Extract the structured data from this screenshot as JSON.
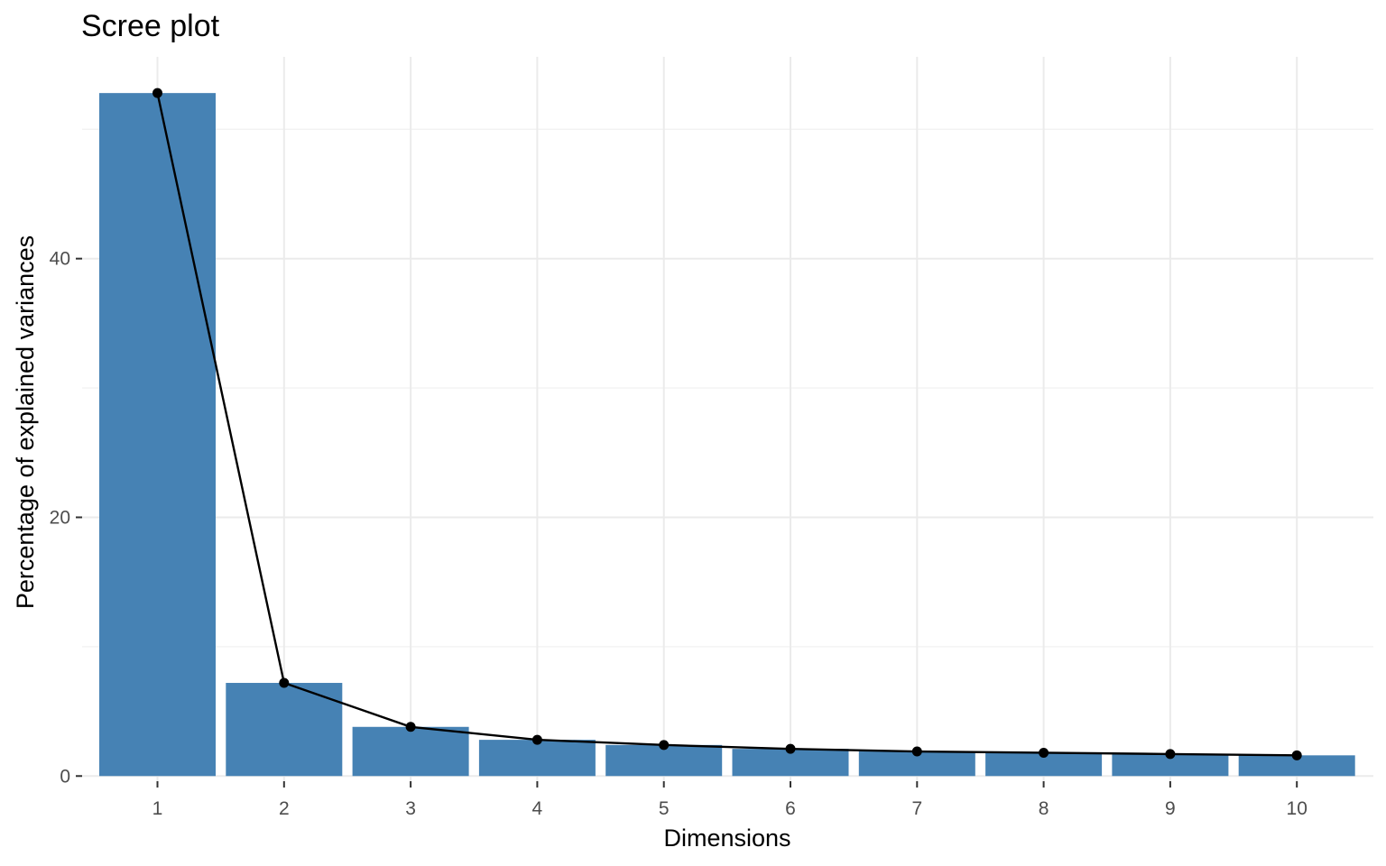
{
  "chart_data": {
    "type": "bar",
    "title": "Scree plot",
    "xlabel": "Dimensions",
    "ylabel": "Percentage of explained variances",
    "categories": [
      "1",
      "2",
      "3",
      "4",
      "5",
      "6",
      "7",
      "8",
      "9",
      "10"
    ],
    "values": [
      52.8,
      7.2,
      3.8,
      2.8,
      2.4,
      2.1,
      1.9,
      1.8,
      1.7,
      1.6
    ],
    "y_ticks": [
      "0",
      "20",
      "40"
    ],
    "ylim": [
      -0.4,
      55.6
    ],
    "grid": true,
    "legend": "none",
    "colors": {
      "bar": "#4682b4",
      "line": "#000000",
      "point": "#000000"
    }
  }
}
